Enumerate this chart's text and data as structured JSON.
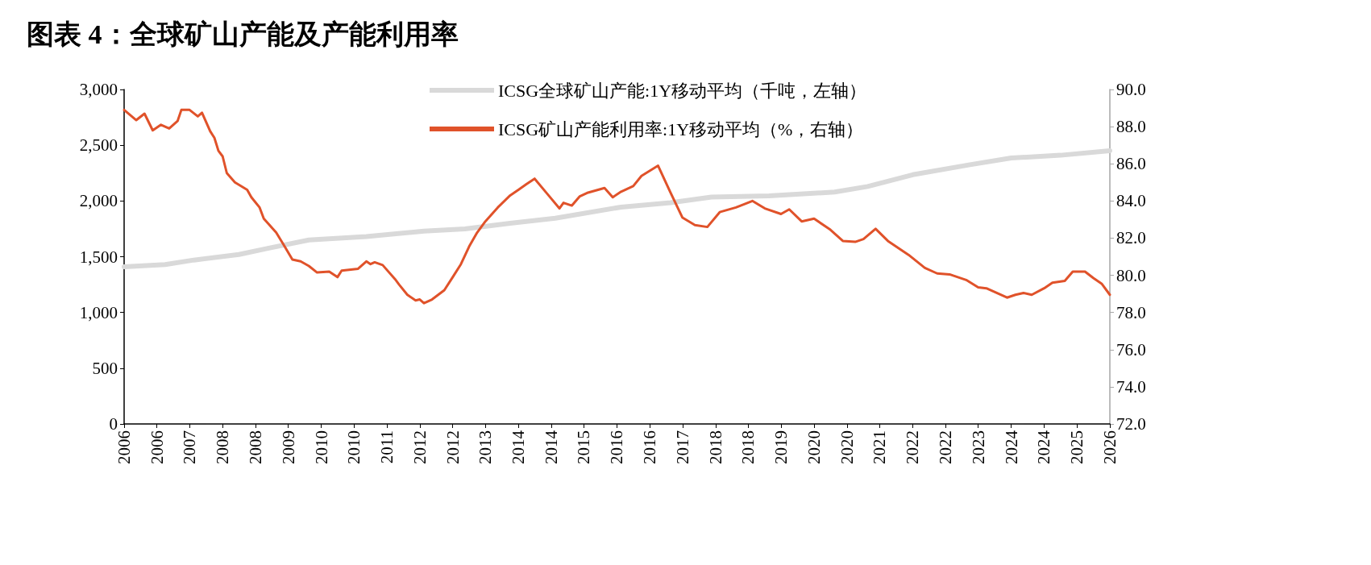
{
  "chart_data": {
    "type": "line",
    "title": "图表 4：全球矿山产能及产能利用率",
    "xlim": [
      "2006-01",
      "2026-01"
    ],
    "xticks": [
      {
        "value": "2006-01",
        "label": "2006"
      },
      {
        "value": "2006-09",
        "label": "2006"
      },
      {
        "value": "2007-05",
        "label": "2007"
      },
      {
        "value": "2008-01",
        "label": "2008"
      },
      {
        "value": "2008-09",
        "label": "2008"
      },
      {
        "value": "2009-05",
        "label": "2009"
      },
      {
        "value": "2010-01",
        "label": "2010"
      },
      {
        "value": "2010-09",
        "label": "2010"
      },
      {
        "value": "2011-05",
        "label": "2011"
      },
      {
        "value": "2012-01",
        "label": "2012"
      },
      {
        "value": "2012-09",
        "label": "2012"
      },
      {
        "value": "2013-05",
        "label": "2013"
      },
      {
        "value": "2014-01",
        "label": "2014"
      },
      {
        "value": "2014-09",
        "label": "2014"
      },
      {
        "value": "2015-05",
        "label": "2015"
      },
      {
        "value": "2016-01",
        "label": "2016"
      },
      {
        "value": "2016-09",
        "label": "2016"
      },
      {
        "value": "2017-05",
        "label": "2017"
      },
      {
        "value": "2018-01",
        "label": "2018"
      },
      {
        "value": "2018-09",
        "label": "2018"
      },
      {
        "value": "2019-05",
        "label": "2019"
      },
      {
        "value": "2020-01",
        "label": "2020"
      },
      {
        "value": "2020-09",
        "label": "2020"
      },
      {
        "value": "2021-05",
        "label": "2021"
      },
      {
        "value": "2022-01",
        "label": "2022"
      },
      {
        "value": "2022-09",
        "label": "2022"
      },
      {
        "value": "2023-05",
        "label": "2023"
      },
      {
        "value": "2024-01",
        "label": "2024"
      },
      {
        "value": "2024-09",
        "label": "2024"
      },
      {
        "value": "2025-05",
        "label": "2025"
      },
      {
        "value": "2026-01",
        "label": "2026"
      }
    ],
    "ylim": [
      0,
      3000
    ],
    "yticks": [
      0,
      500,
      {
        "value": 1000,
        "label": "1,000"
      },
      {
        "value": 1500,
        "label": "1,500"
      },
      {
        "value": 2000,
        "label": "2,000"
      },
      {
        "value": 2500,
        "label": "2,500"
      },
      {
        "value": 3000,
        "label": "3,000"
      }
    ],
    "y2lim": [
      72,
      90
    ],
    "y2ticks": [
      {
        "value": 72,
        "label": "72.0"
      },
      {
        "value": 74,
        "label": "74.0"
      },
      {
        "value": 76,
        "label": "76.0"
      },
      {
        "value": 78,
        "label": "78.0"
      },
      {
        "value": 80,
        "label": "80.0"
      },
      {
        "value": 82,
        "label": "82.0"
      },
      {
        "value": 84,
        "label": "84.0"
      },
      {
        "value": 86,
        "label": "86.0"
      },
      {
        "value": 88,
        "label": "88.0"
      },
      {
        "value": 90,
        "label": "90.0"
      }
    ],
    "grid": false,
    "legend": "top",
    "marker": "none",
    "line_style": "solid",
    "series": [
      {
        "name": "ICSG全球矿山产能:1Y移动平均（千吨，左轴）",
        "color": "#d9d9d9",
        "x": [
          "2006-01",
          "2006-11",
          "2007-06",
          "2008-05",
          "2008-12",
          "2009-10",
          "2010-12",
          "2012-02",
          "2012-12",
          "2013-11",
          "2014-10",
          "2016-02",
          "2017-02",
          "2017-12",
          "2019-02",
          "2020-06",
          "2021-02",
          "2022-01",
          "2023-03",
          "2024-01",
          "2025-01",
          "2026-01"
        ],
        "values": [
          1410,
          1430,
          1470,
          1520,
          1575,
          1650,
          1680,
          1730,
          1750,
          1800,
          1845,
          1945,
          1985,
          2035,
          2045,
          2080,
          2130,
          2235,
          2325,
          2385,
          2410,
          2450
        ]
      },
      {
        "name": "ICSG矿山产能利用率:1Y移动平均（%，右轴）",
        "color": "#e0522a",
        "axis": "y2",
        "x": [
          "2006-01",
          "2006-04",
          "2006-06",
          "2006-08",
          "2006-10",
          "2006-12",
          "2007-02",
          "2007-03",
          "2007-05",
          "2007-07",
          "2007-08",
          "2007-10",
          "2007-11",
          "2007-12",
          "2008-01",
          "2008-02",
          "2008-04",
          "2008-07",
          "2008-08",
          "2008-10",
          "2008-11",
          "2009-02",
          "2009-04",
          "2009-06",
          "2009-08",
          "2009-10",
          "2009-12",
          "2010-03",
          "2010-05",
          "2010-06",
          "2010-10",
          "2010-12",
          "2011-01",
          "2011-02",
          "2011-04",
          "2011-07",
          "2011-08",
          "2011-10",
          "2011-12",
          "2012-01",
          "2012-02",
          "2012-04",
          "2012-07",
          "2012-09",
          "2012-11",
          "2013-01",
          "2013-03",
          "2013-05",
          "2013-08",
          "2013-11",
          "2014-01",
          "2014-03",
          "2014-05",
          "2014-08",
          "2014-11",
          "2014-12",
          "2015-02",
          "2015-04",
          "2015-06",
          "2015-10",
          "2015-12",
          "2016-02",
          "2016-05",
          "2016-07",
          "2016-11",
          "2017-02",
          "2017-05",
          "2017-08",
          "2017-11",
          "2018-02",
          "2018-06",
          "2018-10",
          "2019-01",
          "2019-05",
          "2019-07",
          "2019-10",
          "2020-01",
          "2020-05",
          "2020-08",
          "2020-11",
          "2021-01",
          "2021-04",
          "2021-07",
          "2021-12",
          "2022-04",
          "2022-07",
          "2022-10",
          "2023-02",
          "2023-05",
          "2023-07",
          "2023-12",
          "2024-02",
          "2024-04",
          "2024-06",
          "2024-09",
          "2024-11",
          "2025-02",
          "2025-04",
          "2025-07",
          "2025-09",
          "2025-11",
          "2026-01"
        ],
        "values": [
          88.9,
          88.35,
          88.7,
          87.8,
          88.1,
          87.9,
          88.3,
          88.9,
          88.9,
          88.55,
          88.75,
          87.75,
          87.4,
          86.7,
          86.4,
          85.5,
          85.0,
          84.6,
          84.2,
          83.65,
          83.05,
          82.3,
          81.6,
          80.85,
          80.75,
          80.5,
          80.15,
          80.2,
          79.9,
          80.25,
          80.35,
          80.75,
          80.6,
          80.7,
          80.55,
          79.8,
          79.5,
          78.95,
          78.65,
          78.7,
          78.5,
          78.7,
          79.2,
          79.9,
          80.6,
          81.55,
          82.3,
          82.9,
          83.65,
          84.3,
          84.6,
          84.9,
          85.2,
          84.4,
          83.6,
          83.9,
          83.75,
          84.25,
          84.45,
          84.7,
          84.2,
          84.5,
          84.8,
          85.35,
          85.9,
          84.45,
          83.1,
          82.7,
          82.6,
          83.4,
          83.65,
          84.0,
          83.6,
          83.3,
          83.55,
          82.9,
          83.05,
          82.45,
          81.85,
          81.8,
          81.95,
          82.5,
          81.85,
          81.1,
          80.4,
          80.1,
          80.05,
          79.75,
          79.35,
          79.3,
          78.8,
          78.95,
          79.05,
          78.95,
          79.3,
          79.6,
          79.7,
          80.2,
          80.2,
          79.85,
          79.55,
          78.95
        ]
      }
    ]
  }
}
